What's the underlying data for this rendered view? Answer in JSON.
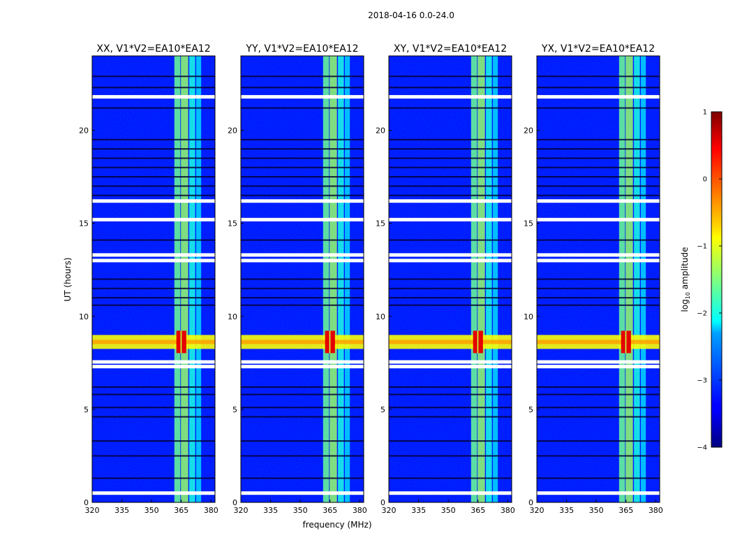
{
  "figure_title": "2018-04-16 0.0-24.0",
  "chart_data": {
    "type": "heatmap",
    "title": "2018-04-16 0.0-24.0",
    "xlabel": "frequency (MHz)",
    "ylabel": "UT (hours)",
    "xlim": [
      320,
      382
    ],
    "ylim": [
      0,
      24
    ],
    "xticks": [
      320,
      335,
      350,
      365,
      380
    ],
    "yticks": [
      0,
      5,
      10,
      15,
      20
    ],
    "colorbar": {
      "label": "log10 amplitude",
      "range": [
        -4,
        1
      ],
      "ticks": [
        1,
        0,
        -1,
        -2,
        -3,
        -4
      ],
      "tick_labels": [
        "1",
        "0",
        "−1",
        "−2",
        "−3",
        "−4"
      ],
      "colormap": "jet"
    },
    "panels": [
      {
        "pol": "XX",
        "title": "XX, V1*V2=EA10*EA12"
      },
      {
        "pol": "YY",
        "title": "YY, V1*V2=EA10*EA12"
      },
      {
        "pol": "XY",
        "title": "XY, V1*V2=EA10*EA12"
      },
      {
        "pol": "YX",
        "title": "YX, V1*V2=EA10*EA12"
      }
    ],
    "features": {
      "background_level": -3.3,
      "bright_band_mhz": [
        361.5,
        375
      ],
      "hot_channels_mhz": [
        {
          "range": [
            361.5,
            364.5
          ],
          "level": -1.6
        },
        {
          "range": [
            364.8,
            368.5
          ],
          "level": -1.4
        },
        {
          "range": [
            369,
            372
          ],
          "level": -2.0
        },
        {
          "range": [
            372.5,
            375
          ],
          "level": -2.3
        }
      ],
      "strong_event": {
        "ut_hours": [
          8.25,
          9.0
        ],
        "peak_mhz": [
          362.5,
          367.5
        ],
        "peak_level": 0.5,
        "broadband_level": -0.9
      },
      "blank_times_ut": [
        0.5,
        7.3,
        7.55,
        13.0,
        13.3,
        15.2,
        16.2,
        21.8
      ],
      "dark_rows_ut": [
        1.3,
        2.5,
        3.3,
        4.6,
        5.1,
        5.8,
        6.2,
        10.6,
        11.0,
        11.5,
        12.0,
        14.1,
        16.5,
        17.0,
        17.5,
        18.0,
        18.5,
        19.0,
        19.5,
        21.2,
        22.3,
        22.9
      ]
    }
  }
}
